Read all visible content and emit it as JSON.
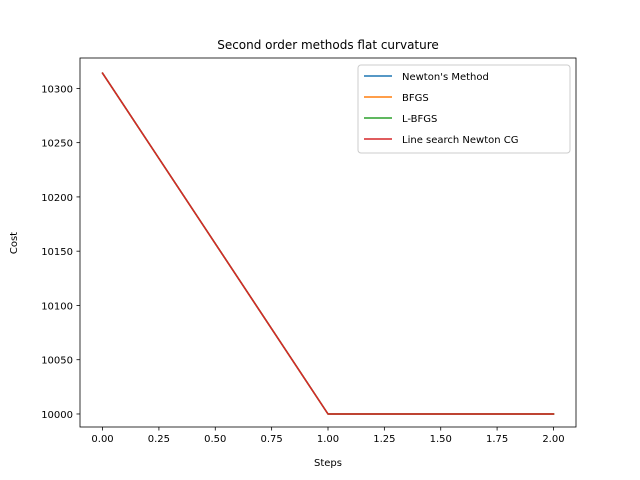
{
  "chart_data": {
    "type": "line",
    "title": "Second order methods flat curvature",
    "xlabel": "Steps",
    "ylabel": "Cost",
    "xlim": [
      -0.1,
      2.1
    ],
    "ylim": [
      9988,
      10328
    ],
    "x_ticks": [
      "0.00",
      "0.25",
      "0.50",
      "0.75",
      "1.00",
      "1.25",
      "1.50",
      "1.75",
      "2.00"
    ],
    "y_ticks": [
      "10000",
      "10050",
      "10100",
      "10150",
      "10200",
      "10250",
      "10300"
    ],
    "grid": false,
    "legend_position": "top-right",
    "x": [
      0,
      1,
      2
    ],
    "series": [
      {
        "name": "Newton's Method",
        "color": "#1f77b4",
        "values": [
          10314,
          10000,
          10000
        ]
      },
      {
        "name": "BFGS",
        "color": "#ff7f0e",
        "values": [
          10314,
          10000,
          10000
        ]
      },
      {
        "name": "L-BFGS",
        "color": "#2ca02c",
        "values": [
          10314,
          10000,
          10000
        ]
      },
      {
        "name": "Line search Newton CG",
        "color": "#d62728",
        "values": [
          10314,
          10000,
          10000
        ]
      }
    ]
  }
}
